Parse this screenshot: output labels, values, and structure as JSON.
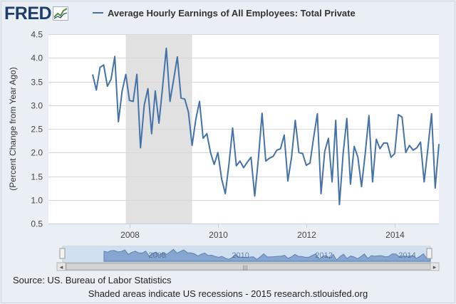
{
  "header": {
    "logo_text": "FRED"
  },
  "chart_data": {
    "type": "line",
    "title": "",
    "xlabel": "",
    "ylabel": "(Percent Change from Year Ago)",
    "ylim": [
      0.5,
      4.5
    ],
    "xlim": [
      "2006-03-01",
      "2015-01-01"
    ],
    "y_ticks": [
      "0.5",
      "1.0",
      "1.5",
      "2.0",
      "2.5",
      "3.0",
      "3.5",
      "4.0",
      "4.5"
    ],
    "x_ticks": [
      "2008",
      "2010",
      "2012",
      "2014"
    ],
    "grid": "horizontal",
    "legend_position": "top",
    "recession_shading": [
      {
        "start": "2007-12-01",
        "end": "2009-06-01"
      }
    ],
    "series": [
      {
        "name": "Average Hourly Earnings of All Employees: Total Private",
        "color": "#4572a7",
        "x": [
          "2007-03",
          "2007-04",
          "2007-05",
          "2007-06",
          "2007-07",
          "2007-08",
          "2007-09",
          "2007-10",
          "2007-11",
          "2007-12",
          "2008-01",
          "2008-02",
          "2008-03",
          "2008-04",
          "2008-05",
          "2008-06",
          "2008-07",
          "2008-08",
          "2008-09",
          "2008-10",
          "2008-11",
          "2008-12",
          "2009-01",
          "2009-02",
          "2009-03",
          "2009-04",
          "2009-05",
          "2009-06",
          "2009-07",
          "2009-08",
          "2009-09",
          "2009-10",
          "2009-11",
          "2009-12",
          "2010-01",
          "2010-02",
          "2010-03",
          "2010-04",
          "2010-05",
          "2010-06",
          "2010-07",
          "2010-08",
          "2010-09",
          "2010-10",
          "2010-11",
          "2010-12",
          "2011-01",
          "2011-02",
          "2011-03",
          "2011-04",
          "2011-05",
          "2011-06",
          "2011-07",
          "2011-08",
          "2011-09",
          "2011-10",
          "2011-11",
          "2011-12",
          "2012-01",
          "2012-02",
          "2012-03",
          "2012-04",
          "2012-05",
          "2012-06",
          "2012-07",
          "2012-08",
          "2012-09",
          "2012-10",
          "2012-11",
          "2012-12",
          "2013-01",
          "2013-02",
          "2013-03",
          "2013-04",
          "2013-05",
          "2013-06",
          "2013-07",
          "2013-08",
          "2013-09",
          "2013-10",
          "2013-11",
          "2013-12",
          "2014-01",
          "2014-02",
          "2014-03",
          "2014-04",
          "2014-05",
          "2014-06",
          "2014-07",
          "2014-08",
          "2014-09",
          "2014-10",
          "2014-11",
          "2014-12",
          "2015-01"
        ],
        "values": [
          3.65,
          3.32,
          3.8,
          3.85,
          3.4,
          3.55,
          4.03,
          2.65,
          3.3,
          3.65,
          3.1,
          3.08,
          3.65,
          2.1,
          3.0,
          3.35,
          2.4,
          3.3,
          2.62,
          3.4,
          4.2,
          3.08,
          3.55,
          4.02,
          3.15,
          3.13,
          2.85,
          2.15,
          2.7,
          3.08,
          2.3,
          2.4,
          2.0,
          1.75,
          2.0,
          1.45,
          1.13,
          1.75,
          2.52,
          1.72,
          1.82,
          1.68,
          1.8,
          1.9,
          1.08,
          1.88,
          2.83,
          1.82,
          1.88,
          1.92,
          2.05,
          2.08,
          2.37,
          1.4,
          1.9,
          2.68,
          2.0,
          1.98,
          1.73,
          1.78,
          2.32,
          2.82,
          1.13,
          2.02,
          2.3,
          1.38,
          2.68,
          0.9,
          1.98,
          2.72,
          1.33,
          2.13,
          1.9,
          1.28,
          1.98,
          2.78,
          1.38,
          2.28,
          2.08,
          2.2,
          2.2,
          1.9,
          1.98,
          2.8,
          2.75,
          2.0,
          2.15,
          2.05,
          2.1,
          2.22,
          1.38,
          2.08,
          2.82,
          1.25,
          2.18
        ]
      }
    ]
  },
  "navigator": {
    "year_labels": [
      "2008",
      "2010",
      "2012",
      "2014"
    ],
    "left_arrow": "◂",
    "right_arrow": "▸",
    "grip": "|||"
  },
  "footer": {
    "source": "Source: US. Bureau of Labor Statistics",
    "note": "Shaded areas indicate US recessions - 2015 research.stlouisfed.org"
  }
}
